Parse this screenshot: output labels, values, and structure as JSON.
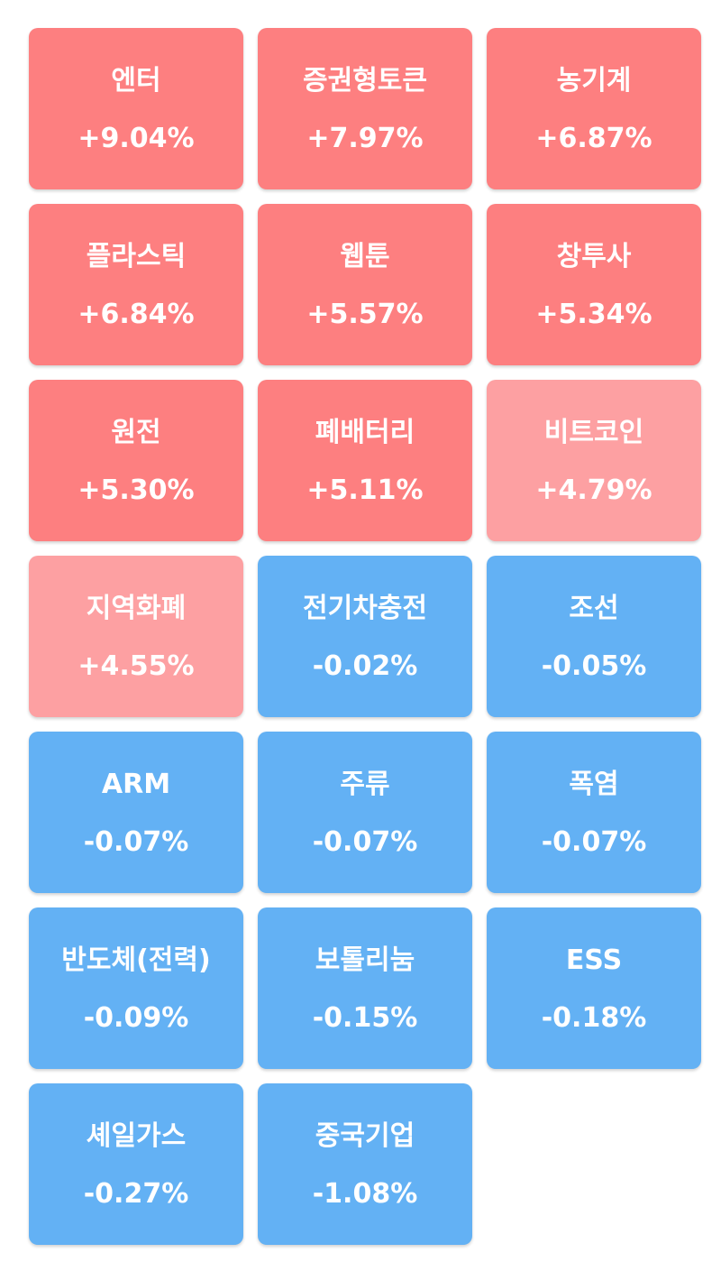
{
  "colors": {
    "up_strong": "#fd7f80",
    "up_light": "#fda0a2",
    "down": "#63b1f4"
  },
  "tiles": [
    {
      "name": "엔터",
      "change": "+9.04%",
      "tone": "up-strong"
    },
    {
      "name": "증권형토큰",
      "change": "+7.97%",
      "tone": "up-strong"
    },
    {
      "name": "농기계",
      "change": "+6.87%",
      "tone": "up-strong"
    },
    {
      "name": "플라스틱",
      "change": "+6.84%",
      "tone": "up-strong"
    },
    {
      "name": "웹툰",
      "change": "+5.57%",
      "tone": "up-strong"
    },
    {
      "name": "창투사",
      "change": "+5.34%",
      "tone": "up-strong"
    },
    {
      "name": "원전",
      "change": "+5.30%",
      "tone": "up-strong"
    },
    {
      "name": "폐배터리",
      "change": "+5.11%",
      "tone": "up-strong"
    },
    {
      "name": "비트코인",
      "change": "+4.79%",
      "tone": "up-light"
    },
    {
      "name": "지역화폐",
      "change": "+4.55%",
      "tone": "up-light"
    },
    {
      "name": "전기차충전",
      "change": "-0.02%",
      "tone": "down"
    },
    {
      "name": "조선",
      "change": "-0.05%",
      "tone": "down"
    },
    {
      "name": "ARM",
      "change": "-0.07%",
      "tone": "down"
    },
    {
      "name": "주류",
      "change": "-0.07%",
      "tone": "down"
    },
    {
      "name": "폭염",
      "change": "-0.07%",
      "tone": "down"
    },
    {
      "name": "반도체(전력)",
      "change": "-0.09%",
      "tone": "down"
    },
    {
      "name": "보톨리눔",
      "change": "-0.15%",
      "tone": "down"
    },
    {
      "name": "ESS",
      "change": "-0.18%",
      "tone": "down"
    },
    {
      "name": "셰일가스",
      "change": "-0.27%",
      "tone": "down"
    },
    {
      "name": "중국기업",
      "change": "-1.08%",
      "tone": "down"
    }
  ]
}
